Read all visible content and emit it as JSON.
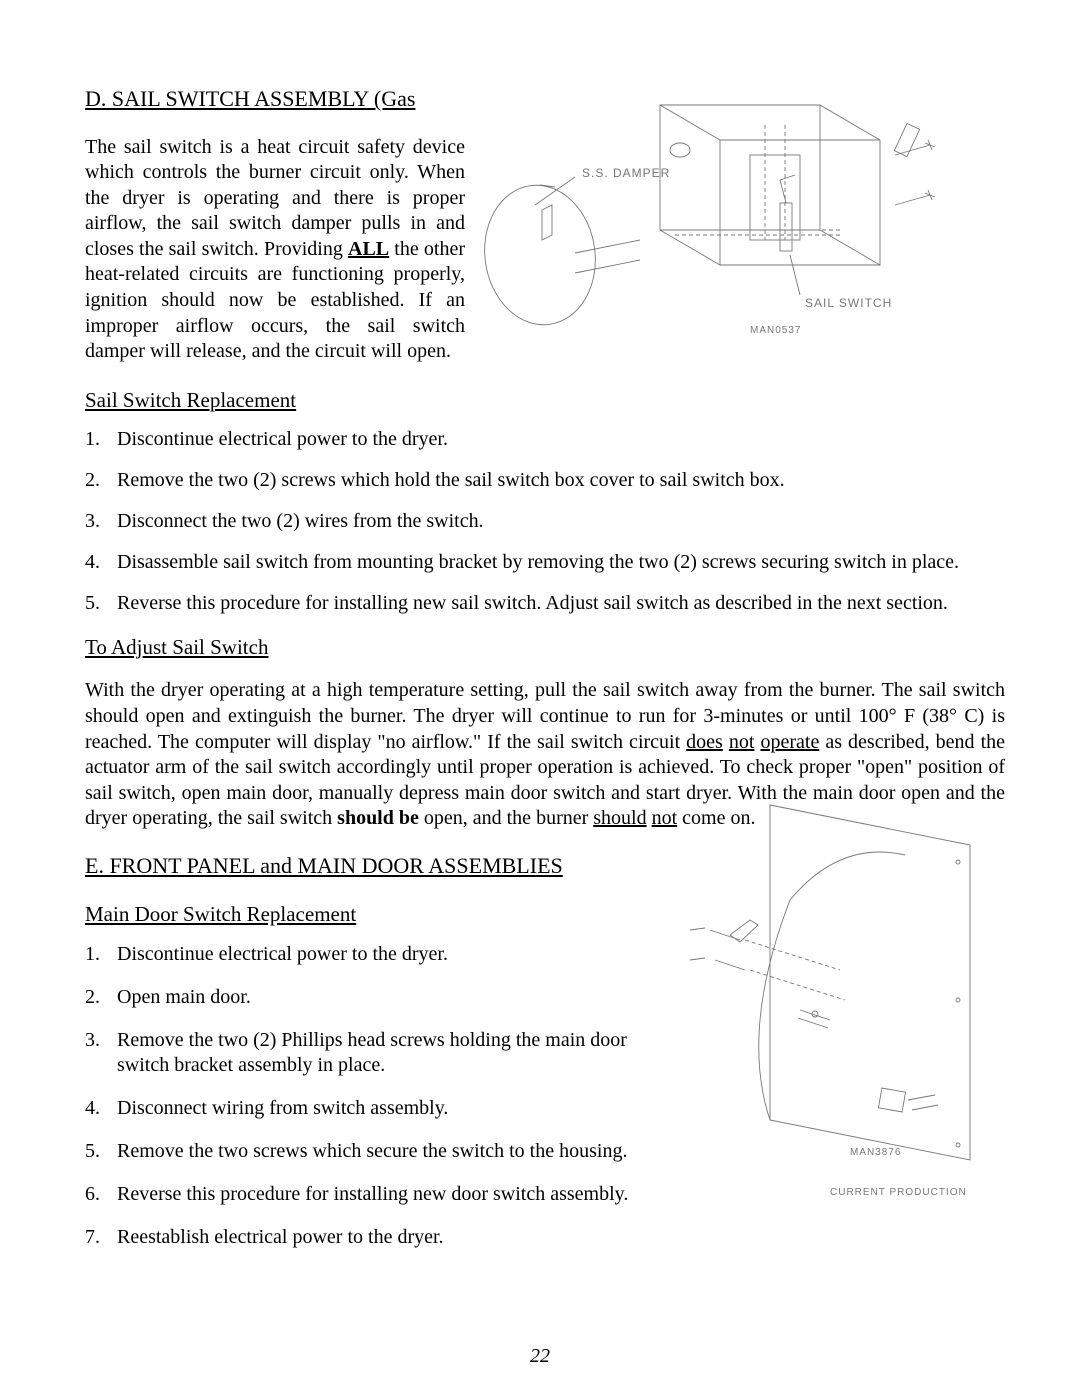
{
  "sectionD": {
    "heading": "D.  SAIL SWITCH ASSEMBLY (Gas ",
    "intro_pre": "The sail switch is a heat circuit safety device which controls the burner circuit only.  When the dryer is operating and there is proper airflow, the sail switch damper pulls in and closes the sail switch.  Providing ",
    "intro_all": "ALL",
    "intro_post": " the other heat-related circuits are functioning properly, ignition should now be established.  If an improper airflow occurs, the sail switch damper will release, and the circuit will open.",
    "replace_heading": "Sail Switch Replacement",
    "replace_steps": [
      "Discontinue electrical power to the dryer.",
      "Remove the two (2) screws which hold the sail switch box cover to sail switch box.",
      "Disconnect the two (2) wires from the switch.",
      "Disassemble sail switch from mounting bracket by removing the two (2) screws securing switch in place.",
      "Reverse this procedure for installing new sail switch.  Adjust sail switch as described in the next section."
    ],
    "adjust_heading": "To Adjust Sail Switch",
    "adjust_p_a": "With the dryer operating at a high temperature setting, pull the sail switch away from the burner.  The sail switch should open and extinguish the burner.  The dryer will continue to run for 3-minutes or until 100° F (38° C) is reached.  The computer will display \"no airflow.\"  If the sail switch circuit ",
    "adjust_u1": "does",
    "adjust_sp1": " ",
    "adjust_u2": "not",
    "adjust_sp2": " ",
    "adjust_u3": "operate",
    "adjust_p_b": " as described, bend the actuator arm of the sail switch accordingly until proper operation is achieved.  To check proper \"open\" position of sail switch, open main door, manually depress main door switch and start dryer.  With the main door open and the dryer operating, the sail switch ",
    "adjust_bold": "should be",
    "adjust_p_c": " open, and the burner ",
    "adjust_u4": "should",
    "adjust_sp3": " ",
    "adjust_u5": "not",
    "adjust_p_d": " come on."
  },
  "sectionE": {
    "heading": "E.  FRONT PANEL and MAIN DOOR ASSEMBLIES",
    "sub_heading": "Main Door Switch Replacement",
    "steps": [
      "Discontinue electrical power to the dryer.",
      "Open main door.",
      "Remove the two (2) Phillips head screws holding the main door switch bracket assembly in place.",
      "Disconnect wiring from switch assembly.",
      "Remove the two screws which secure the switch to the housing.",
      "Reverse this procedure for installing new door switch assembly.",
      "Reestablish electrical power to the dryer."
    ]
  },
  "fig1": {
    "label_damper": "S.S. DAMPER",
    "label_switch": "SAIL SWITCH",
    "code": "MAN0537",
    "line_color": "#808080"
  },
  "fig2": {
    "code": "MAN3876",
    "caption": "CURRENT PRODUCTION",
    "line_color": "#808080"
  },
  "page_number": "22"
}
